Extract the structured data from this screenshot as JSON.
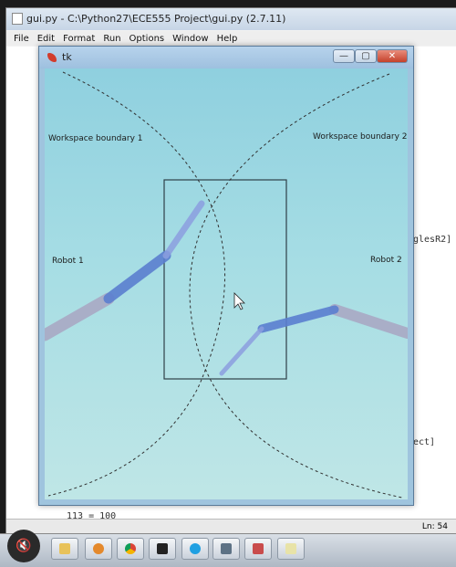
{
  "idle": {
    "title": "gui.py - C:\\Python27\\ECE555 Project\\gui.py (2.7.11)",
    "menu": [
      "File",
      "Edit",
      "Format",
      "Run",
      "Options",
      "Window",
      "Help"
    ],
    "code_fragments": [
      "glesR2]",
      "ect]",
      "113 = 100"
    ],
    "status": "Ln: 54"
  },
  "tk": {
    "title": "tk",
    "buttons": {
      "minimize": "—",
      "maximize": "▢",
      "close": "✕"
    },
    "labels": {
      "boundary1": "Workspace boundary 1",
      "boundary2": "Workspace boundary 2",
      "robot1": "Robot 1",
      "robot2": "Robot 2"
    },
    "colors": {
      "canvas_top": "#8fd0df",
      "canvas_bottom": "#bfe6e6",
      "link_gray": "#a9a9c4",
      "link_blue": "#5b7fd0",
      "link_light_blue": "#8c9fe0",
      "rect_stroke": "#2f3f48",
      "boundary_stroke": "#303030"
    }
  },
  "taskbar": {
    "icons": [
      "folder-icon",
      "media-player-icon",
      "chrome-icon",
      "terminal-icon",
      "skype-icon",
      "pen-icon",
      "paint-icon",
      "notepad-icon"
    ]
  }
}
